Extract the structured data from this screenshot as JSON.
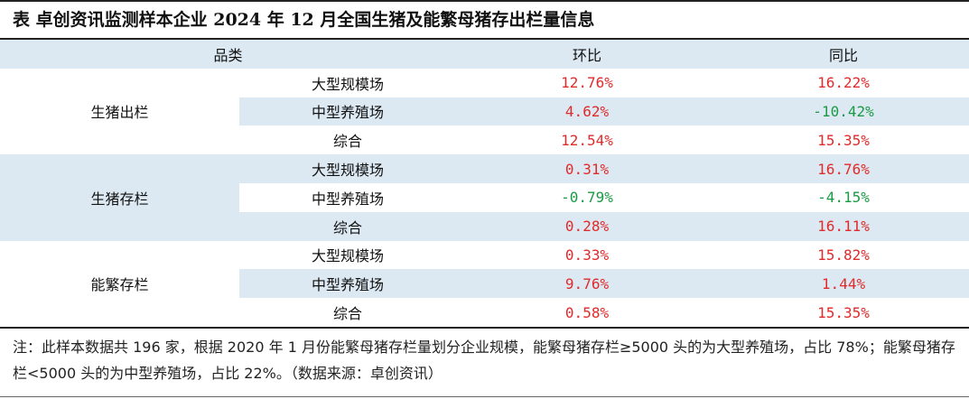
{
  "title": "表  卓创资讯监测样本企业 2024 年 12 月全国生猪及能繁母猪存出栏量信息",
  "headers": {
    "category": "品类",
    "mom": "环比",
    "yoy": "同比"
  },
  "groups": [
    {
      "name": "生猪出栏",
      "rows": [
        {
          "label": "大型规模场",
          "mom": "12.76%",
          "yoy": "16.22%"
        },
        {
          "label": "中型养殖场",
          "mom": "4.62%",
          "yoy": "-10.42%"
        },
        {
          "label": "综合",
          "mom": "12.54%",
          "yoy": "15.35%"
        }
      ]
    },
    {
      "name": "生猪存栏",
      "rows": [
        {
          "label": "大型规模场",
          "mom": "0.31%",
          "yoy": "16.76%"
        },
        {
          "label": "中型养殖场",
          "mom": "-0.79%",
          "yoy": "-4.15%"
        },
        {
          "label": "综合",
          "mom": "0.28%",
          "yoy": "16.11%"
        }
      ]
    },
    {
      "name": "能繁存栏",
      "rows": [
        {
          "label": "大型规模场",
          "mom": "0.33%",
          "yoy": "15.82%"
        },
        {
          "label": "中型养殖场",
          "mom": "9.76%",
          "yoy": "1.44%"
        },
        {
          "label": "综合",
          "mom": "0.58%",
          "yoy": "15.35%"
        }
      ]
    }
  ],
  "colors": {
    "positive": "#e02b2b",
    "negative": "#1a9a45",
    "shade": "#dce9f2"
  },
  "note": "注：此样本数据共 196 家，根据 2020 年 1 月份能繁母猪存栏量划分企业规模，能繁母猪存栏≥5000 头的为大型养殖场，占比 78%；能繁母猪存栏<5000 头的为中型养殖场，占比 22%。（数据来源：卓创资讯）"
}
